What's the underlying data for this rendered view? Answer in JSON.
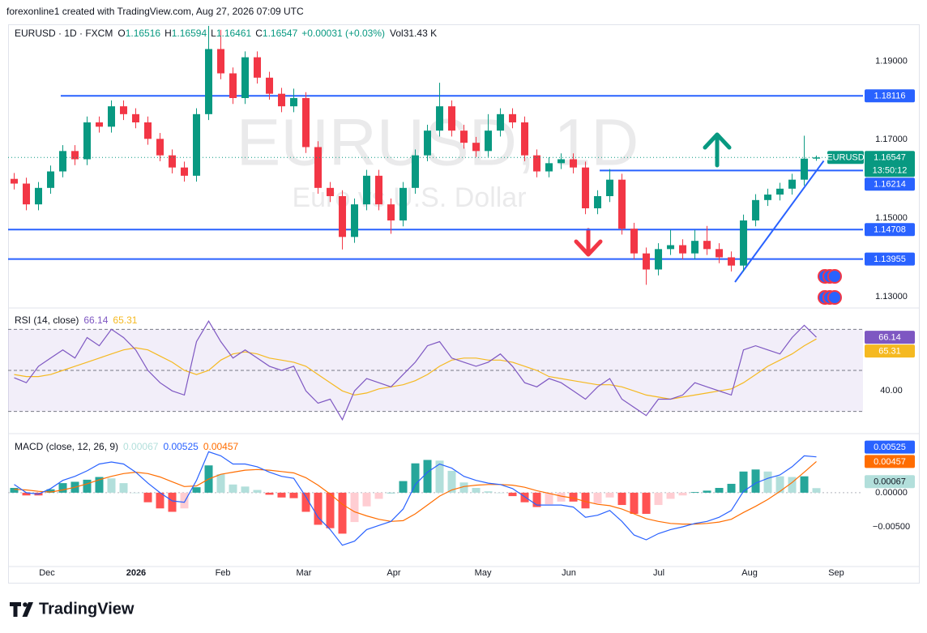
{
  "header": {
    "attribution": "forexonline1 created with TradingView.com, Aug 27, 2026 07:09 UTC"
  },
  "chart_data": [
    {
      "type": "candlestick",
      "symbol": "EURUSD · 1D · FXCM",
      "ohlc_prefixes": [
        "O",
        "H",
        "L",
        "C"
      ],
      "change": "+0.00031 (+0.03%)",
      "volume": "Vol31.43 K",
      "watermark": "EURUSD, 1D",
      "watermark_subtitle": "Euro vs U.S. Dollar",
      "open": [
        1.16,
        1.1588,
        1.1535,
        1.1577,
        1.1619,
        1.1671,
        1.165,
        1.1744,
        1.1733,
        1.1785,
        1.1765,
        1.1744,
        1.1702,
        1.166,
        1.1629,
        1.1608,
        1.1765,
        1.1931,
        1.1869,
        1.1806,
        1.191,
        1.1858,
        1.1817,
        1.1785,
        1.1806,
        1.1681,
        1.1577,
        1.1556,
        1.1452,
        1.1535,
        1.1608,
        1.1535,
        1.1494,
        1.1577,
        1.166,
        1.1723,
        1.1785,
        1.1723,
        1.1692,
        1.1671,
        1.1723,
        1.1765,
        1.1744,
        1.166,
        1.1619,
        1.164,
        1.165,
        1.1629,
        1.1525,
        1.1556,
        1.1598,
        1.1473,
        1.141,
        1.1369,
        1.1421,
        1.1431,
        1.141,
        1.1442,
        1.1421,
        1.14,
        1.1379,
        1.1494,
        1.1546,
        1.156,
        1.1575,
        1.1598,
        1.16516
      ],
      "high": [
        1.1615,
        1.1603,
        1.1592,
        1.1634,
        1.1686,
        1.1686,
        1.1759,
        1.1759,
        1.18,
        1.18,
        1.178,
        1.1759,
        1.1717,
        1.1675,
        1.1644,
        1.178,
        1.199,
        1.198,
        1.1884,
        1.1925,
        1.1925,
        1.1873,
        1.1832,
        1.183,
        1.1821,
        1.1696,
        1.1592,
        1.1571,
        1.155,
        1.1623,
        1.1623,
        1.155,
        1.1592,
        1.1675,
        1.1738,
        1.1845,
        1.18,
        1.1738,
        1.1707,
        1.1765,
        1.178,
        1.178,
        1.1759,
        1.1675,
        1.1655,
        1.1665,
        1.1665,
        1.1644,
        1.1571,
        1.1625,
        1.1613,
        1.1488,
        1.1425,
        1.1436,
        1.147,
        1.1446,
        1.147,
        1.148,
        1.1436,
        1.1415,
        1.1509,
        1.1561,
        1.1575,
        1.159,
        1.1613,
        1.171,
        1.16594
      ],
      "low": [
        1.1573,
        1.152,
        1.152,
        1.1562,
        1.1604,
        1.1635,
        1.1635,
        1.1718,
        1.1718,
        1.175,
        1.1729,
        1.1687,
        1.1645,
        1.1614,
        1.1593,
        1.1593,
        1.175,
        1.1854,
        1.1791,
        1.1791,
        1.1843,
        1.1802,
        1.177,
        1.177,
        1.1666,
        1.1562,
        1.1541,
        1.142,
        1.1437,
        1.152,
        1.152,
        1.146,
        1.1479,
        1.1562,
        1.1645,
        1.1708,
        1.1708,
        1.1677,
        1.1656,
        1.1656,
        1.1708,
        1.1729,
        1.1645,
        1.1604,
        1.1604,
        1.1625,
        1.1614,
        1.151,
        1.151,
        1.1541,
        1.1458,
        1.1395,
        1.133,
        1.1354,
        1.1406,
        1.1395,
        1.1395,
        1.1406,
        1.1385,
        1.1364,
        1.1364,
        1.1479,
        1.1531,
        1.1545,
        1.156,
        1.1583,
        1.16461
      ],
      "close": [
        1.1588,
        1.1535,
        1.1577,
        1.1619,
        1.1671,
        1.165,
        1.1744,
        1.1733,
        1.1785,
        1.1765,
        1.1744,
        1.1702,
        1.166,
        1.1629,
        1.1608,
        1.1765,
        1.1931,
        1.1869,
        1.1806,
        1.191,
        1.1858,
        1.1817,
        1.1785,
        1.1806,
        1.1681,
        1.1577,
        1.1556,
        1.1452,
        1.1535,
        1.1608,
        1.1535,
        1.1494,
        1.1577,
        1.166,
        1.1723,
        1.1785,
        1.1723,
        1.1692,
        1.1671,
        1.1723,
        1.1765,
        1.1744,
        1.166,
        1.1619,
        1.164,
        1.165,
        1.1629,
        1.1525,
        1.1556,
        1.1598,
        1.1473,
        1.141,
        1.1369,
        1.1421,
        1.1431,
        1.141,
        1.1442,
        1.1421,
        1.14,
        1.1379,
        1.1494,
        1.1546,
        1.156,
        1.1575,
        1.1598,
        1.16516,
        1.16547
      ],
      "up_color": "#089981",
      "down_color": "#f23645",
      "xlim": [
        0,
        70.33
      ],
      "ylim": [
        1.1275,
        1.1994
      ],
      "yticks": [
        {
          "value": 1.13,
          "label": "1.13000"
        },
        {
          "value": 1.15,
          "label": "1.15000"
        },
        {
          "value": 1.17,
          "label": "1.17000"
        },
        {
          "value": 1.19,
          "label": "1.19000"
        }
      ],
      "levels": [
        {
          "price": 1.18116,
          "start": 4.33
        },
        {
          "price": 1.16214,
          "start": 48.67
        },
        {
          "price": 1.14708,
          "start": 0
        },
        {
          "price": 1.13955,
          "start": 0
        }
      ],
      "level_color": "#2962ff",
      "trendline": {
        "x": [
          59.8,
          67.1
        ],
        "y": [
          1.1337,
          1.1646
        ]
      },
      "last_label": "EURUSD",
      "countdown": "13:50:12"
    },
    {
      "type": "line",
      "title": "RSI (14, close)",
      "series": [
        {
          "color": "#7e57c2",
          "values": [
            46.4,
            44,
            52,
            56,
            60,
            56,
            66,
            62,
            70,
            66,
            60,
            50,
            44,
            40,
            38,
            64,
            74,
            64,
            56,
            60,
            56,
            52,
            50,
            52,
            40,
            34,
            36,
            26,
            40,
            46,
            44,
            42,
            48,
            54,
            62,
            64,
            56,
            54,
            52,
            54,
            58,
            52,
            44,
            42,
            46,
            44,
            40,
            36,
            42,
            46,
            36,
            32,
            28,
            36,
            36,
            38,
            44,
            42,
            40,
            38,
            60,
            62,
            60,
            58,
            66,
            72,
            66.14
          ]
        },
        {
          "color": "#f5b921",
          "values": [
            48,
            47,
            47,
            48,
            50,
            52,
            54,
            56,
            58,
            60,
            61,
            60,
            57,
            54,
            50,
            48,
            50,
            55,
            58,
            59,
            58,
            56,
            55,
            54,
            52,
            48,
            44,
            40,
            38,
            39,
            41,
            42,
            43,
            45,
            48,
            52,
            55,
            56,
            56,
            55,
            55,
            54,
            52,
            50,
            47,
            46,
            45,
            44,
            43,
            43,
            42,
            40,
            38,
            37,
            36,
            37,
            38,
            39,
            40,
            41,
            44,
            48,
            52,
            55,
            58,
            62,
            65.31
          ]
        }
      ],
      "bands": [
        70,
        50,
        30
      ],
      "band_fill": "rgba(126,87,194,0.1)",
      "xlim": [
        0,
        70.33
      ],
      "ylim": [
        20.4,
        79.6
      ],
      "yticks": [
        {
          "value": 40,
          "label": "40.00"
        }
      ]
    },
    {
      "type": "macd",
      "title": "MACD (close, 12, 26, 9)",
      "histogram": [
        0.0007,
        -0.0004,
        -0.0004,
        0.0005,
        0.0014,
        0.0016,
        0.0019,
        0.0023,
        0.0021,
        0.0014,
        0,
        -0.0014,
        -0.0023,
        -0.0028,
        -0.0023,
        0.0008,
        0.004,
        0.0027,
        0.0012,
        0.0009,
        0.0004,
        -0.0003,
        -0.0007,
        -0.0008,
        -0.0028,
        -0.0047,
        -0.0052,
        -0.006,
        -0.0043,
        -0.002,
        -0.0009,
        0,
        0.0017,
        0.0043,
        0.0048,
        0.0047,
        0.0032,
        0.0015,
        0.0007,
        0.0002,
        0,
        -0.0005,
        -0.0014,
        -0.0021,
        -0.0017,
        -0.0013,
        -0.0013,
        -0.0023,
        -0.0016,
        -0.0007,
        -0.0018,
        -0.0031,
        -0.0031,
        -0.0018,
        -0.0009,
        -0.0004,
        0.0001,
        0.0003,
        0.0007,
        0.0013,
        0.0031,
        0.0034,
        0.0031,
        0.0024,
        0.0023,
        0.0024,
        0.00067
      ],
      "histogram_colors": {
        "grow_above": "#26a69a",
        "fall_above": "#b2dfdb",
        "grow_below": "#ffcdd2",
        "fall_below": "#ff5252"
      },
      "macd": {
        "color": "#2962ff",
        "values": [
          0.0012,
          0,
          -0.0002,
          0.0006,
          0.0018,
          0.0024,
          0.0032,
          0.0042,
          0.0045,
          0.0042,
          0.003,
          0.0014,
          0,
          -0.0012,
          -0.0014,
          0.0018,
          0.006,
          0.0054,
          0.0042,
          0.0042,
          0.0038,
          0.003,
          0.0024,
          0.0021,
          -0.0006,
          -0.0036,
          -0.0054,
          -0.0077,
          -0.0071,
          -0.0054,
          -0.0048,
          -0.0042,
          -0.0024,
          0.0012,
          0.003,
          0.0042,
          0.0036,
          0.0024,
          0.0018,
          0.0014,
          0.0012,
          0.0006,
          -0.0006,
          -0.0018,
          -0.0018,
          -0.0018,
          -0.0021,
          -0.0036,
          -0.0033,
          -0.0026,
          -0.0042,
          -0.0062,
          -0.0069,
          -0.006,
          -0.0054,
          -0.005,
          -0.0045,
          -0.0042,
          -0.0036,
          -0.0026,
          0.0002,
          0.0014,
          0.0021,
          0.0026,
          0.0038,
          0.0054,
          0.00525
        ]
      },
      "signal": {
        "color": "#ff6d00",
        "values": [
          0.0005,
          0.0004,
          0.0002,
          0.0001,
          0.0004,
          0.0008,
          0.0013,
          0.0019,
          0.0024,
          0.0028,
          0.003,
          0.0028,
          0.0023,
          0.0016,
          0.0009,
          0.001,
          0.002,
          0.0027,
          0.003,
          0.0033,
          0.0034,
          0.0033,
          0.0031,
          0.0029,
          0.0022,
          0.0011,
          -0.0002,
          -0.0017,
          -0.0028,
          -0.0034,
          -0.0039,
          -0.0042,
          -0.0041,
          -0.0031,
          -0.0018,
          -0.0005,
          0.0004,
          0.0009,
          0.0011,
          0.0012,
          0.0012,
          0.0011,
          0.0008,
          0.0003,
          -0.0001,
          -0.0005,
          -0.0008,
          -0.0013,
          -0.0017,
          -0.0019,
          -0.0024,
          -0.0031,
          -0.0038,
          -0.0042,
          -0.0045,
          -0.0046,
          -0.0046,
          -0.0045,
          -0.0043,
          -0.0039,
          -0.0029,
          -0.002,
          -0.001,
          0.0002,
          0.0015,
          0.003,
          0.00457
        ]
      },
      "xlim": [
        0,
        70.33
      ],
      "ylim": [
        -0.0107,
        0.0083
      ],
      "yticks": [
        {
          "value": -0.005,
          "label": "−0.00500"
        },
        {
          "value": 0,
          "label": "0.00000"
        }
      ],
      "xticks": [
        {
          "value": 3.2,
          "label": "Dec"
        },
        {
          "value": 10.53,
          "label": "2026",
          "bold": true
        },
        {
          "value": 17.67,
          "label": "Feb"
        },
        {
          "value": 24.33,
          "label": "Mar"
        },
        {
          "value": 31.73,
          "label": "Apr"
        },
        {
          "value": 39.07,
          "label": "May"
        },
        {
          "value": 46.13,
          "label": "Jun"
        },
        {
          "value": 53.53,
          "label": "Jul"
        },
        {
          "value": 61.0,
          "label": "Aug"
        },
        {
          "value": 68.13,
          "label": "Sep"
        }
      ]
    }
  ],
  "footer": {
    "brand": "TradingView"
  }
}
